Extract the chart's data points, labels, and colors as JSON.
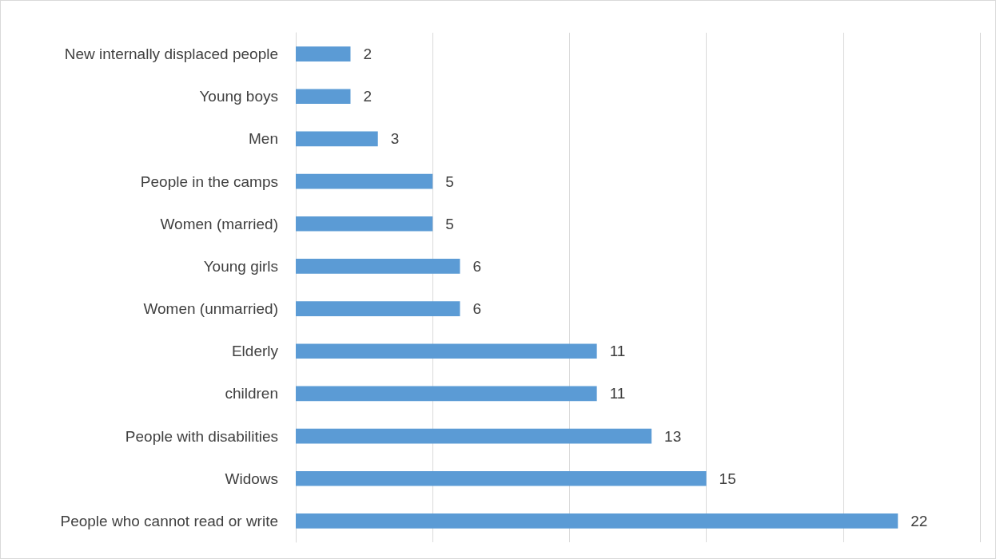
{
  "chart_data": {
    "type": "bar",
    "orientation": "horizontal",
    "categories": [
      "New internally displaced people",
      "Young boys",
      "Men",
      "People in the camps",
      "Women (married)",
      "Young girls",
      "Women (unmarried)",
      "Elderly",
      "children",
      "People with disabilities",
      "Widows",
      "People who cannot read or write"
    ],
    "values": [
      2,
      2,
      3,
      5,
      5,
      6,
      6,
      11,
      11,
      13,
      15,
      22
    ],
    "color": "#5b9bd5",
    "xlim": [
      0,
      25
    ],
    "xticks": [
      {
        "value": 0,
        "label": null
      },
      {
        "value": 5,
        "label": null
      },
      {
        "value": 10,
        "label": null
      },
      {
        "value": 15,
        "label": null
      },
      {
        "value": 20,
        "label": null
      },
      {
        "value": 25,
        "label": null
      }
    ],
    "tick_labels": "y",
    "grid": "x",
    "data_labels": true
  }
}
